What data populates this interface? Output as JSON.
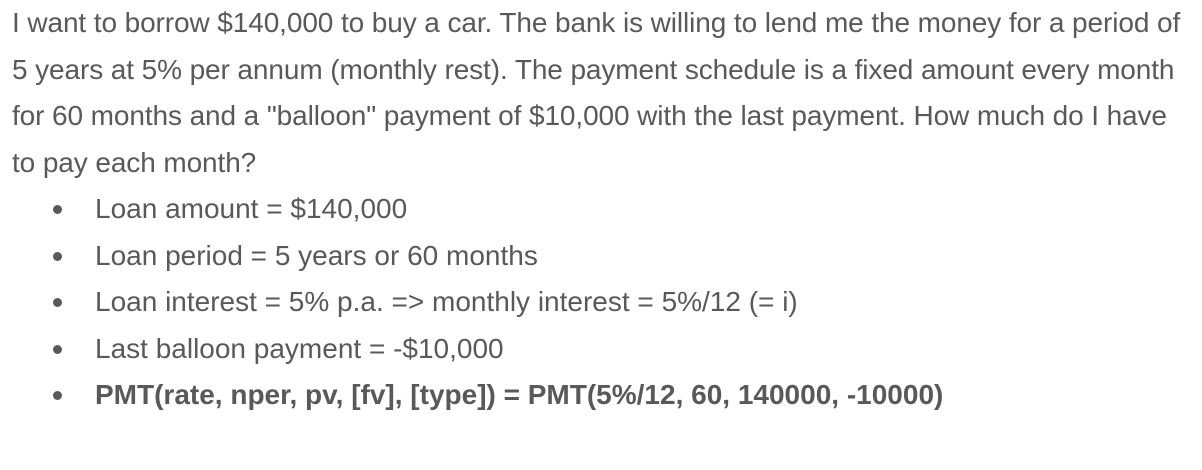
{
  "problem_text": "I want to borrow $140,000 to buy a car.  The bank is willing to lend me the money for a period of 5 years at 5% per annum (monthly rest).  The payment schedule is a fixed amount every month for 60 months and a \"balloon\" payment of $10,000 with the last payment. How much do I have to pay each month?",
  "bullets": [
    "Loan amount = $140,000",
    "Loan period = 5 years or 60 months",
    "Loan interest = 5% p.a. => monthly interest = 5%/12 (= i)",
    "Last balloon payment = -$10,000",
    "PMT(rate, nper, pv, [fv], [type]) = PMT(5%/12, 60, 140000, -10000)"
  ],
  "colors": {
    "text": "#595959",
    "background": "#ffffff"
  }
}
